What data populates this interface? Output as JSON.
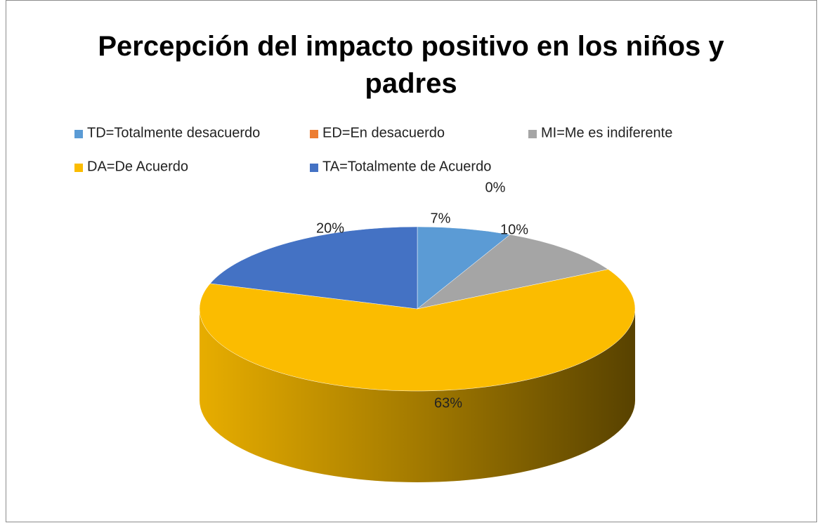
{
  "chart_data": {
    "type": "pie",
    "title": "Percepción del impacto positivo en los niños y padres",
    "categories": [
      "TD=Totalmente desacuerdo",
      "ED=En desacuerdo",
      "MI=Me es indiferente",
      "DA=De Acuerdo",
      "TA=Totalmente de Acuerdo"
    ],
    "values": [
      7,
      0,
      10,
      63,
      20
    ],
    "value_labels": [
      "7%",
      "0%",
      "10%",
      "63%",
      "20%"
    ],
    "colors": [
      "#5b9bd5",
      "#ed7d31",
      "#a5a5a5",
      "#fbbc00",
      "#4472c4"
    ],
    "legend": "top"
  }
}
